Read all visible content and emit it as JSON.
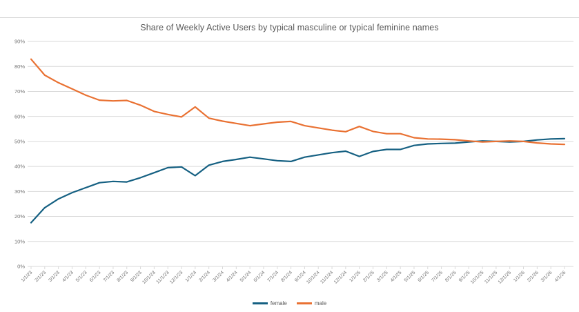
{
  "window": {
    "background": "#ffffff",
    "top_border_color": "#d9d9d9"
  },
  "chart_data": {
    "type": "line",
    "title": "Share of Weekly Active Users by typical masculine or typical feminine names",
    "title_color": "#595959",
    "xlabel": "",
    "ylabel": "",
    "ylim": [
      0,
      90
    ],
    "y_tick_step": 10,
    "y_tick_labels": [
      "0%",
      "10%",
      "20%",
      "30%",
      "40%",
      "50%",
      "60%",
      "70%",
      "80%",
      "90%"
    ],
    "grid": "horizontal",
    "gridline_color": "#d9d9d9",
    "axis_label_color": "#737373",
    "legend_position": "bottom-center",
    "x_labels": [
      "1/1/23",
      "2/1/23",
      "3/1/23",
      "4/1/23",
      "5/1/23",
      "6/1/23",
      "7/1/23",
      "8/1/23",
      "9/1/23",
      "10/1/23",
      "11/1/23",
      "12/1/23",
      "1/1/24",
      "2/1/24",
      "3/1/24",
      "4/1/24",
      "5/1/24",
      "6/1/24",
      "7/1/24",
      "8/1/24",
      "9/1/24",
      "10/1/24",
      "11/1/24",
      "12/1/24",
      "1/1/25",
      "2/1/25",
      "3/1/25",
      "4/1/25",
      "5/1/25",
      "6/1/25",
      "7/1/25",
      "8/1/25",
      "9/1/25",
      "10/1/25",
      "11/1/25",
      "12/1/25",
      "1/1/26",
      "2/1/26",
      "3/1/26",
      "4/1/26"
    ],
    "series": [
      {
        "name": "female",
        "color": "#156082",
        "values": [
          17.5,
          23.5,
          27,
          29.5,
          31.5,
          33.5,
          34,
          33.8,
          35.5,
          37.5,
          39.5,
          39.8,
          36.3,
          40.5,
          42,
          42.8,
          43.7,
          43,
          42.3,
          42,
          43.7,
          44.6,
          45.5,
          46.1,
          44,
          46,
          46.8,
          46.8,
          48.4,
          49,
          49.2,
          49.3,
          49.8,
          50.2,
          50,
          49.8,
          50,
          50.6,
          51,
          51.1
        ]
      },
      {
        "name": "male",
        "color": "#E97132",
        "values": [
          82.9,
          76.5,
          73.5,
          71,
          68.5,
          66.5,
          66.2,
          66.4,
          64.5,
          62,
          60.8,
          59.8,
          63.8,
          59.3,
          58.1,
          57.2,
          56.3,
          57,
          57.7,
          58,
          56.3,
          55.4,
          54.5,
          53.9,
          56,
          54,
          53.1,
          53.1,
          51.5,
          51,
          50.9,
          50.7,
          50.2,
          49.8,
          50,
          50.2,
          50,
          49.4,
          49,
          48.8
        ]
      }
    ]
  }
}
